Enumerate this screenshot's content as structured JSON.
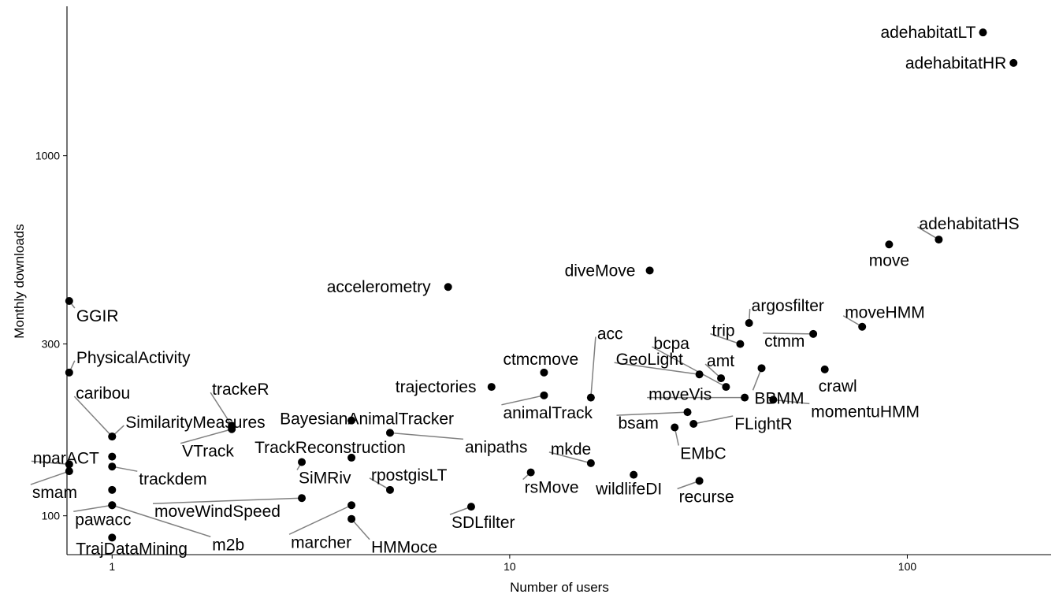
{
  "chart_data": {
    "type": "scatter",
    "title": "",
    "xlabel": "Number of users",
    "ylabel": "Monthly downloads",
    "x_scale": "log10",
    "y_scale": "log10",
    "xlim": [
      0.77,
      230
    ],
    "ylim": [
      78,
      2600
    ],
    "x_ticks": [
      {
        "value": 1,
        "label": "1"
      },
      {
        "value": 10,
        "label": "10"
      },
      {
        "value": 100,
        "label": "100"
      }
    ],
    "y_ticks": [
      {
        "value": 100,
        "label": "100"
      },
      {
        "value": 300,
        "label": "300"
      },
      {
        "value": 1000,
        "label": "1000"
      }
    ],
    "grid": false,
    "legend": "none",
    "point_color": "#000000",
    "leader_color": "#808080",
    "points": [
      {
        "name": "adehabitatLT",
        "x": 155,
        "y": 2200
      },
      {
        "name": "adehabitatHR",
        "x": 185,
        "y": 1810
      },
      {
        "name": "adehabitatHS",
        "x": 120,
        "y": 585
      },
      {
        "name": "move",
        "x": 90,
        "y": 567
      },
      {
        "name": "moveHMM",
        "x": 77,
        "y": 335
      },
      {
        "name": "argosfilter",
        "x": 40,
        "y": 343
      },
      {
        "name": "trip",
        "x": 38,
        "y": 300
      },
      {
        "name": "ctmm",
        "x": 58,
        "y": 320
      },
      {
        "name": "crawl",
        "x": 62,
        "y": 255
      },
      {
        "name": "BBMM",
        "x": 43,
        "y": 257
      },
      {
        "name": "momentuHMM",
        "x": 46,
        "y": 210
      },
      {
        "name": "amt",
        "x": 34,
        "y": 241
      },
      {
        "name": "bcpa",
        "x": 35,
        "y": 228
      },
      {
        "name": "GeoLight",
        "x": 30,
        "y": 247
      },
      {
        "name": "moveVis",
        "x": 39,
        "y": 213
      },
      {
        "name": "bsam",
        "x": 28,
        "y": 194
      },
      {
        "name": "FLightR",
        "x": 29,
        "y": 180
      },
      {
        "name": "EMbC",
        "x": 26,
        "y": 176
      },
      {
        "name": "diveMove",
        "x": 22.5,
        "y": 480
      },
      {
        "name": "accelerometry",
        "x": 7,
        "y": 432
      },
      {
        "name": "acc",
        "x": 16,
        "y": 213
      },
      {
        "name": "ctmcmove",
        "x": 12.2,
        "y": 250
      },
      {
        "name": "animalTrack",
        "x": 12.2,
        "y": 216
      },
      {
        "name": "trajectories",
        "x": 9,
        "y": 228
      },
      {
        "name": "mkde",
        "x": 16,
        "y": 140
      },
      {
        "name": "wildlifeDI",
        "x": 20.5,
        "y": 130
      },
      {
        "name": "recurse",
        "x": 30,
        "y": 125
      },
      {
        "name": "rsMove",
        "x": 11.3,
        "y": 132
      },
      {
        "name": "SDLfilter",
        "x": 8,
        "y": 106
      },
      {
        "name": "rpostgisLT",
        "x": 5,
        "y": 118
      },
      {
        "name": "anipaths",
        "x": 5,
        "y": 170
      },
      {
        "name": "BayesianAnimalTracker",
        "x": 4,
        "y": 184
      },
      {
        "name": "TrackReconstruction",
        "x": 4,
        "y": 145
      },
      {
        "name": "SiMRiv",
        "x": 3,
        "y": 141
      },
      {
        "name": "moveWindSpeed",
        "x": 3,
        "y": 112
      },
      {
        "name": "marcher",
        "x": 4,
        "y": 107
      },
      {
        "name": "HMMoce",
        "x": 4,
        "y": 98
      },
      {
        "name": "trackeR",
        "x": 2,
        "y": 178
      },
      {
        "name": "VTrack",
        "x": 2,
        "y": 174
      },
      {
        "name": "SimilarityMeasures",
        "x": 1,
        "y": 166
      },
      {
        "name": "caribou",
        "x": 1,
        "y": 166
      },
      {
        "name": "nparACT",
        "x": 1,
        "y": 146
      },
      {
        "name": "trackdem",
        "x": 1,
        "y": 137
      },
      {
        "name": "smam",
        "x": 1,
        "y": 118
      },
      {
        "name": "m2b",
        "x": 1,
        "y": 107
      },
      {
        "name": "pawacc",
        "x": 1,
        "y": 107
      },
      {
        "name": "TrajDataMining",
        "x": 1,
        "y": 87
      },
      {
        "name": "GGIR",
        "x": 0.78,
        "y": 395
      },
      {
        "name": "PhysicalActivity",
        "x": 0.78,
        "y": 250
      },
      {
        "name": "npar-low-1",
        "x": 0.78,
        "y": 139
      },
      {
        "name": "smam-low-2",
        "x": 0.78,
        "y": 133
      }
    ],
    "labels": [
      {
        "text": "adehabitatLT",
        "point": "adehabitatLT"
      },
      {
        "text": "adehabitatHR",
        "point": "adehabitatHR"
      },
      {
        "text": "adehabitatHS",
        "point": "adehabitatHS"
      },
      {
        "text": "move",
        "point": "move"
      },
      {
        "text": "moveHMM",
        "point": "moveHMM"
      },
      {
        "text": "argosfilter",
        "point": "argosfilter"
      },
      {
        "text": "trip",
        "point": "trip"
      },
      {
        "text": "ctmm",
        "point": "ctmm"
      },
      {
        "text": "crawl",
        "point": "crawl"
      },
      {
        "text": "BBMM",
        "point": "BBMM"
      },
      {
        "text": "momentuHMM",
        "point": "momentuHMM"
      },
      {
        "text": "amt",
        "point": "amt"
      },
      {
        "text": "bcpa",
        "point": "bcpa"
      },
      {
        "text": "GeoLight",
        "point": "GeoLight"
      },
      {
        "text": "moveVis",
        "point": "moveVis"
      },
      {
        "text": "bsam",
        "point": "bsam"
      },
      {
        "text": "FLightR",
        "point": "FLightR"
      },
      {
        "text": "EMbC",
        "point": "EMbC"
      },
      {
        "text": "diveMove",
        "point": "diveMove"
      },
      {
        "text": "accelerometry",
        "point": "accelerometry"
      },
      {
        "text": "acc",
        "point": "acc"
      },
      {
        "text": "ctmcmove",
        "point": "ctmcmove"
      },
      {
        "text": "animalTrack",
        "point": "animalTrack"
      },
      {
        "text": "trajectories",
        "point": "trajectories"
      },
      {
        "text": "mkde",
        "point": "mkde"
      },
      {
        "text": "wildlifeDI",
        "point": "wildlifeDI"
      },
      {
        "text": "recurse",
        "point": "recurse"
      },
      {
        "text": "rsMove",
        "point": "rsMove"
      },
      {
        "text": "SDLfilter",
        "point": "SDLfilter"
      },
      {
        "text": "rpostgisLT",
        "point": "rpostgisLT"
      },
      {
        "text": "anipaths",
        "point": "anipaths"
      },
      {
        "text": "BayesianAnimalTracker",
        "point": "BayesianAnimalTracker"
      },
      {
        "text": "TrackReconstruction",
        "point": "TrackReconstruction"
      },
      {
        "text": "SiMRiv",
        "point": "SiMRiv"
      },
      {
        "text": "moveWindSpeed",
        "point": "moveWindSpeed"
      },
      {
        "text": "marcher",
        "point": "marcher"
      },
      {
        "text": "HMMoce",
        "point": "HMMoce"
      },
      {
        "text": "trackeR",
        "point": "trackeR"
      },
      {
        "text": "VTrack",
        "point": "VTrack"
      },
      {
        "text": "SimilarityMeasures",
        "point": "SimilarityMeasures"
      },
      {
        "text": "caribou",
        "point": "caribou"
      },
      {
        "text": "nparACT",
        "point": "npar-low-1"
      },
      {
        "text": "trackdem",
        "point": "trackdem"
      },
      {
        "text": "smam",
        "point": "smam-low-2"
      },
      {
        "text": "m2b",
        "point": "m2b"
      },
      {
        "text": "pawacc",
        "point": "pawacc"
      },
      {
        "text": "TrajDataMining",
        "point": "TrajDataMining"
      },
      {
        "text": "GGIR",
        "point": "GGIR"
      },
      {
        "text": "PhysicalActivity",
        "point": "PhysicalActivity"
      }
    ]
  }
}
